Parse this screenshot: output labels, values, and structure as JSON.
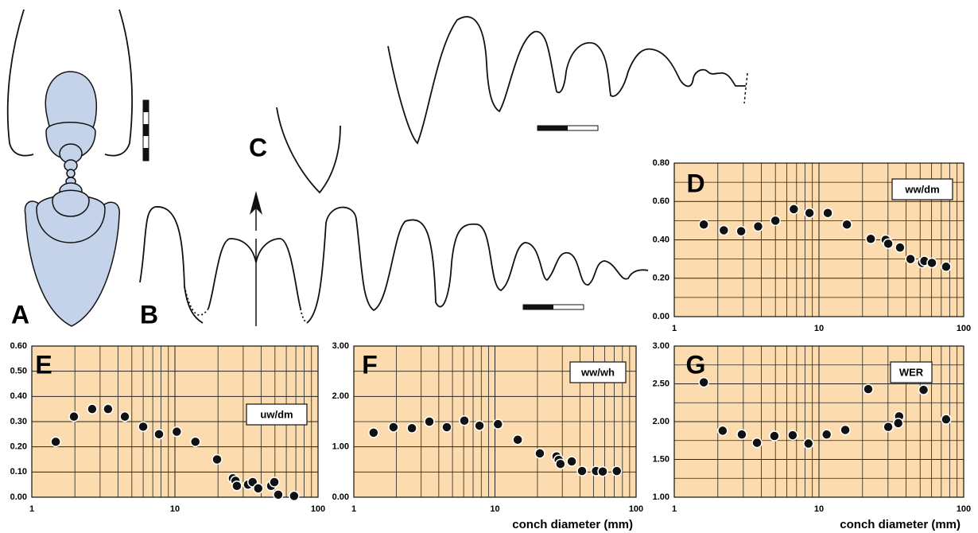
{
  "figure_labels": [
    "A",
    "B",
    "C"
  ],
  "chart_data": [
    {
      "type": "scatter",
      "panel_label": "D",
      "annotation": "ww/dm",
      "log_x": true,
      "color": "#111111",
      "background": "#fcdcae",
      "x": [
        1.6,
        2.2,
        2.9,
        3.8,
        5.0,
        6.7,
        8.6,
        11.5,
        15.6,
        22.8,
        28.9,
        30.1,
        36.3,
        42.9,
        51.6,
        53.5,
        60.3,
        75.6
      ],
      "values": [
        0.48,
        0.45,
        0.445,
        0.47,
        0.5,
        0.56,
        0.54,
        0.54,
        0.48,
        0.405,
        0.4,
        0.38,
        0.36,
        0.3,
        0.28,
        0.29,
        0.28,
        0.26
      ],
      "xlim": [
        1,
        100
      ],
      "xticks": [
        1,
        10,
        100
      ],
      "x_minor_gridlines": [
        2,
        3,
        4,
        5,
        6,
        7,
        8,
        9,
        20,
        30,
        40,
        50,
        60,
        70,
        80,
        90
      ],
      "ylim": [
        0,
        0.8
      ],
      "yticks": [
        {
          "value": 0,
          "label": "0.00"
        },
        {
          "value": 0.2,
          "label": "0.20"
        },
        {
          "value": 0.4,
          "label": "0.40"
        },
        {
          "value": 0.6,
          "label": "0.60"
        },
        {
          "value": 0.8,
          "label": "0.80"
        }
      ],
      "y_minor_gridlines": [
        0.1,
        0.3,
        0.5,
        0.7
      ]
    },
    {
      "type": "scatter",
      "panel_label": "E",
      "annotation": "uw/dm",
      "log_x": true,
      "color": "#111111",
      "background": "#fcdcae",
      "x": [
        1.47,
        1.97,
        2.64,
        3.41,
        4.47,
        6.0,
        7.74,
        10.3,
        13.9,
        19.7,
        25.4,
        26.5,
        27.1,
        32.4,
        34.9,
        38.2,
        47,
        49.5,
        52.7,
        68
      ],
      "values": [
        0.22,
        0.32,
        0.35,
        0.35,
        0.32,
        0.28,
        0.25,
        0.26,
        0.22,
        0.15,
        0.075,
        0.065,
        0.045,
        0.05,
        0.06,
        0.035,
        0.045,
        0.06,
        0.01,
        0.005
      ],
      "xlim": [
        1,
        100
      ],
      "xticks": [
        1,
        10,
        100
      ],
      "x_minor_gridlines": [
        2,
        3,
        4,
        5,
        6,
        7,
        8,
        9,
        20,
        30,
        40,
        50,
        60,
        70,
        80,
        90
      ],
      "ylim": [
        0,
        0.6
      ],
      "yticks": [
        {
          "value": 0,
          "label": "0.00"
        },
        {
          "value": 0.1,
          "label": "0.10"
        },
        {
          "value": 0.2,
          "label": "0.20"
        },
        {
          "value": 0.3,
          "label": "0.30"
        },
        {
          "value": 0.4,
          "label": "0.40"
        },
        {
          "value": 0.5,
          "label": "0.50"
        },
        {
          "value": 0.6,
          "label": "0.60"
        }
      ]
    },
    {
      "type": "scatter",
      "panel_label": "F",
      "annotation": "ww/wh",
      "xlabel": "conch diameter (mm)",
      "log_x": true,
      "color": "#111111",
      "background": "#fcdcae",
      "x": [
        1.38,
        1.91,
        2.58,
        3.43,
        4.56,
        6.07,
        7.77,
        10.5,
        14.5,
        20.8,
        27.3,
        28.3,
        29.1,
        35,
        41.4,
        52,
        58,
        73
      ],
      "values": [
        1.28,
        1.39,
        1.37,
        1.5,
        1.39,
        1.52,
        1.42,
        1.45,
        1.14,
        0.87,
        0.81,
        0.74,
        0.66,
        0.71,
        0.52,
        0.52,
        0.51,
        0.52
      ],
      "xlim": [
        1,
        100
      ],
      "xticks": [
        1,
        10,
        100
      ],
      "x_minor_gridlines": [
        2,
        3,
        4,
        5,
        6,
        7,
        8,
        9,
        20,
        30,
        40,
        50,
        60,
        70,
        80,
        90
      ],
      "ylim": [
        0,
        3
      ],
      "yticks": [
        {
          "value": 0,
          "label": "0.00"
        },
        {
          "value": 1,
          "label": "1.00"
        },
        {
          "value": 2,
          "label": "2.00"
        },
        {
          "value": 3,
          "label": "3.00"
        }
      ],
      "y_minor_gridlines": [
        0.5,
        1.5,
        2.5
      ]
    },
    {
      "type": "scatter",
      "panel_label": "G",
      "annotation": "WER",
      "xlabel": "conch diameter (mm)",
      "log_x": true,
      "color": "#111111",
      "background": "#fcdcae",
      "x": [
        1.6,
        2.16,
        2.93,
        3.73,
        4.92,
        6.58,
        8.46,
        11.3,
        15.2,
        21.9,
        30.1,
        35.8,
        35.3,
        52.8,
        75.6
      ],
      "values": [
        2.52,
        1.88,
        1.83,
        1.72,
        1.81,
        1.82,
        1.71,
        1.83,
        1.89,
        2.43,
        1.93,
        2.07,
        1.98,
        2.42,
        2.03
      ],
      "xlim": [
        1,
        100
      ],
      "xticks": [
        1,
        10,
        100
      ],
      "x_minor_gridlines": [
        2,
        3,
        4,
        5,
        6,
        7,
        8,
        9,
        20,
        30,
        40,
        50,
        60,
        70,
        80,
        90
      ],
      "ylim": [
        1,
        3
      ],
      "yticks": [
        {
          "value": 1,
          "label": "1.00"
        },
        {
          "value": 1.5,
          "label": "1.50"
        },
        {
          "value": 2,
          "label": "2.00"
        },
        {
          "value": 2.5,
          "label": "2.50"
        },
        {
          "value": 3,
          "label": "3.00"
        }
      ],
      "y_minor_gridlines": [
        1.25,
        1.75,
        2.25,
        2.75
      ]
    }
  ]
}
